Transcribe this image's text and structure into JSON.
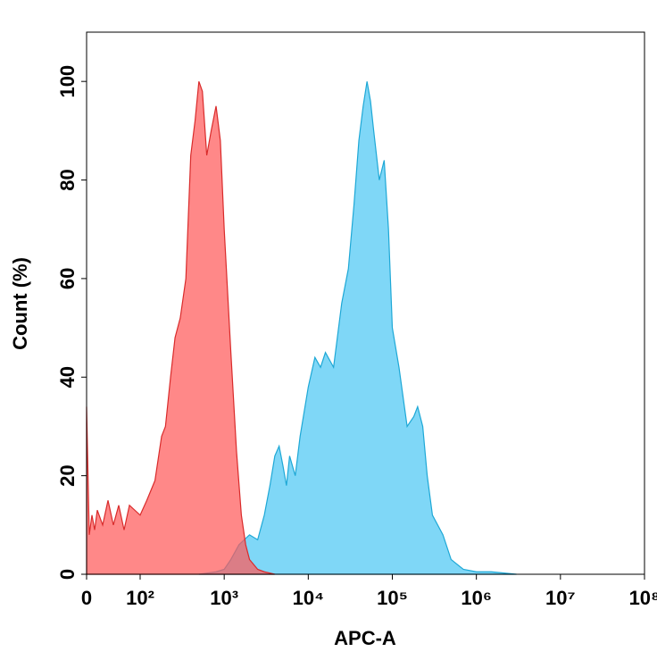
{
  "chart_data": {
    "type": "area",
    "x_label": "APC-A",
    "y_label": "Count (%)",
    "xscale": "biexponential",
    "xlim": [
      0,
      100000000
    ],
    "ylim": [
      0,
      110
    ],
    "xticks": [
      0,
      {
        "value": 100,
        "label": "10²"
      },
      {
        "value": 1000,
        "label": "10³"
      },
      {
        "value": 10000,
        "label": "10⁴"
      },
      {
        "value": 100000,
        "label": "10⁵"
      },
      {
        "value": 1000000,
        "label": "10⁶"
      },
      {
        "value": 10000000,
        "label": "10⁷"
      },
      {
        "value": 100000000,
        "label": "10⁸"
      }
    ],
    "yticks": [
      0,
      20,
      40,
      60,
      80,
      100
    ],
    "series": [
      {
        "color": "#1ea8d6",
        "fill": "#7fd7f7",
        "x": [
          500,
          800,
          1000,
          1200,
          1500,
          2000,
          2500,
          3000,
          3500,
          4000,
          4500,
          5000,
          5500,
          6000,
          7000,
          8000,
          10000,
          12000,
          14000,
          16000,
          20000,
          25000,
          30000,
          35000,
          40000,
          45000,
          50000,
          55000,
          60000,
          70000,
          80000,
          90000,
          100000,
          120000,
          150000,
          180000,
          200000,
          230000,
          260000,
          300000,
          400000,
          500000,
          700000,
          1000000,
          1500000,
          2000000,
          3000000
        ],
        "values": [
          0,
          0.5,
          1,
          3,
          6,
          8,
          7,
          12,
          18,
          24,
          26,
          22,
          18,
          24,
          20,
          28,
          38,
          44,
          42,
          45,
          42,
          55,
          62,
          75,
          88,
          95,
          100,
          96,
          90,
          80,
          84,
          70,
          50,
          42,
          30,
          32,
          34,
          30,
          20,
          12,
          8,
          3,
          1,
          0.5,
          0.5,
          0.3,
          0
        ]
      },
      {
        "color": "#d92b2b",
        "fill": "rgba(255,90,90,0.72)",
        "x": [
          0,
          5,
          10,
          15,
          20,
          30,
          40,
          50,
          60,
          70,
          80,
          100,
          120,
          150,
          180,
          200,
          230,
          260,
          300,
          350,
          400,
          450,
          500,
          550,
          620,
          700,
          800,
          900,
          1000,
          1200,
          1400,
          1600,
          1800,
          2000,
          2500,
          3000,
          4000
        ],
        "values": [
          34,
          8,
          12,
          9,
          13,
          10,
          15,
          10,
          14,
          9,
          14,
          12,
          15,
          19,
          28,
          30,
          40,
          48,
          52,
          60,
          85,
          92,
          100,
          98,
          85,
          90,
          95,
          88,
          70,
          45,
          25,
          12,
          6,
          3,
          1,
          0.5,
          0
        ]
      }
    ]
  }
}
